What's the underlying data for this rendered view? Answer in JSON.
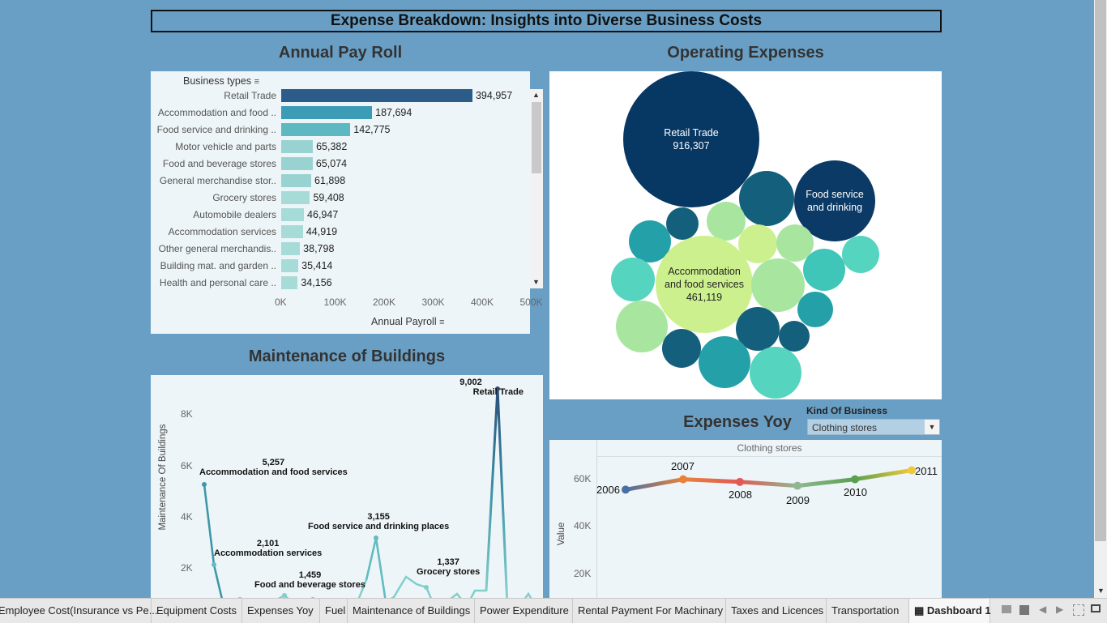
{
  "dashboard_title": "Expense Breakdown: Insights into Diverse Business Costs",
  "payroll": {
    "title": "Annual Pay Roll",
    "header": "Business types",
    "x_label": "Annual Payroll",
    "ticks": [
      "0K",
      "100K",
      "200K",
      "300K",
      "400K",
      "500K"
    ],
    "categories": [
      "Retail Trade",
      "Accommodation and food ..",
      "Food service and drinking ..",
      "Motor vehicle and parts",
      "Food and beverage stores",
      "General merchandise stor..",
      "Grocery stores",
      "Automobile dealers",
      "Accommodation services",
      "Other general merchandis..",
      "Building mat. and garden ..",
      "Health and personal care .."
    ],
    "values": [
      394957,
      187694,
      142775,
      65382,
      65074,
      61898,
      59408,
      46947,
      44919,
      38798,
      35414,
      34156
    ],
    "value_labels": [
      "394,957",
      "187,694",
      "142,775",
      "65,382",
      "65,074",
      "61,898",
      "59,408",
      "46,947",
      "44,919",
      "38,798",
      "35,414",
      "34,156"
    ]
  },
  "operating": {
    "title": "Operating Expenses",
    "labels": [
      {
        "line1": "Retail Trade",
        "line2": "916,307"
      },
      {
        "line1": "Food service",
        "line2": "and drinking"
      },
      {
        "line1": "Accommodation",
        "line2": "and food services",
        "line3": "461,119"
      }
    ]
  },
  "maintenance": {
    "title": "Maintenance of Buildings",
    "y_label": "Maintenance Of Buildings",
    "ticks": [
      "8K",
      "6K",
      "4K",
      "2K"
    ],
    "annotations": [
      {
        "value": "9,002",
        "label": "Retail Trade"
      },
      {
        "value": "5,257",
        "label": "Accommodation and food services"
      },
      {
        "value": "3,155",
        "label": "Food service and drinking places"
      },
      {
        "value": "2,101",
        "label": "Accommodation services"
      },
      {
        "value": "1,459",
        "label": "Food and beverage stores"
      },
      {
        "value": "1,337",
        "label": "Grocery stores"
      }
    ]
  },
  "yoy": {
    "title": "Expenses Yoy",
    "filter_label": "Kind Of Business",
    "filter_value": "Clothing stores",
    "panel_header": "Clothing stores",
    "y_label": "Value",
    "ticks": [
      "60K",
      "40K",
      "20K"
    ],
    "years": [
      "2006",
      "2007",
      "2008",
      "2009",
      "2010",
      "2011"
    ]
  },
  "tabs": [
    "Employee Cost(Insurance vs Pe...",
    "Equipment Costs",
    "Expenses Yoy",
    "Fuel",
    "Maintenance of Buildings",
    "Power Expenditure",
    "Rental Payment For Machinary",
    "Taxes and Licences",
    "Transportation",
    "Dashboard 1"
  ],
  "chart_data": [
    {
      "type": "bar",
      "title": "Annual Pay Roll",
      "xlabel": "Annual Payroll",
      "ylabel": "Business types",
      "categories": [
        "Retail Trade",
        "Accommodation and food ..",
        "Food service and drinking ..",
        "Motor vehicle and parts",
        "Food and beverage stores",
        "General merchandise stor..",
        "Grocery stores",
        "Automobile dealers",
        "Accommodation services",
        "Other general merchandis..",
        "Building mat. and garden ..",
        "Health and personal care .."
      ],
      "values": [
        394957,
        187694,
        142775,
        65382,
        65074,
        61898,
        59408,
        46947,
        44919,
        38798,
        35414,
        34156
      ],
      "xlim": [
        0,
        500000
      ]
    },
    {
      "type": "line",
      "title": "Maintenance of Buildings",
      "ylabel": "Maintenance Of Buildings",
      "ylim": [
        0,
        9500
      ],
      "labeled_points": [
        {
          "label": "Retail Trade",
          "value": 9002
        },
        {
          "label": "Accommodation and food services",
          "value": 5257
        },
        {
          "label": "Food service and drinking places",
          "value": 3155
        },
        {
          "label": "Accommodation services",
          "value": 2101
        },
        {
          "label": "Food and beverage stores",
          "value": 1459
        },
        {
          "label": "Grocery stores",
          "value": 1337
        }
      ]
    },
    {
      "type": "line",
      "title": "Expenses Yoy",
      "ylabel": "Value",
      "x": [
        "2006",
        "2007",
        "2008",
        "2009",
        "2010",
        "2011"
      ],
      "values": [
        57000,
        61000,
        60000,
        58500,
        61000,
        64500
      ],
      "ylim": [
        15000,
        70000
      ]
    }
  ]
}
